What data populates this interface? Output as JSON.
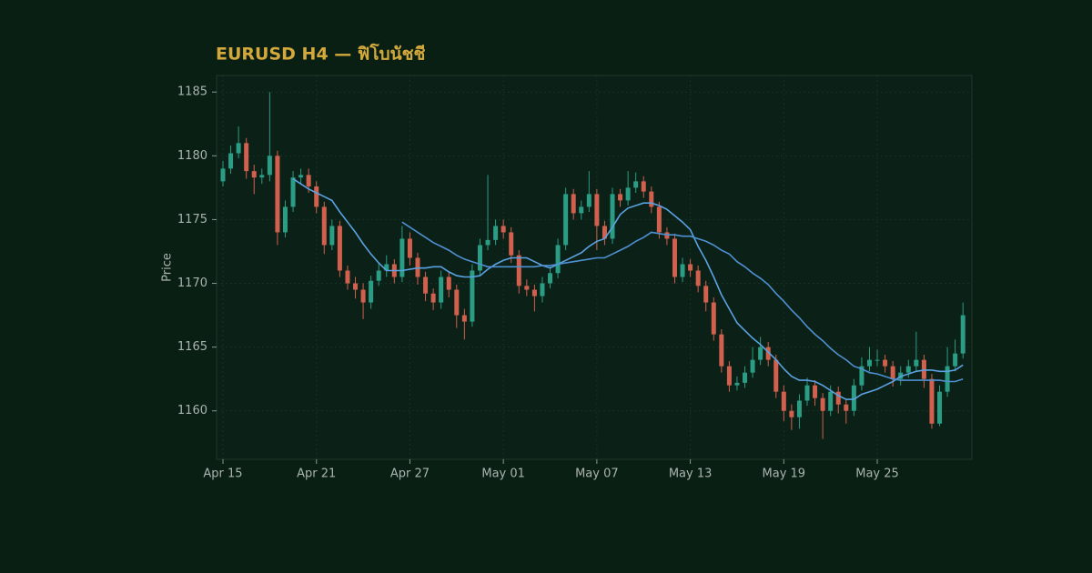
{
  "chart_data": {
    "type": "candlestick",
    "title": "EURUSD H4 — ฟิโบนัชชี",
    "y_label": "Price",
    "up_color": "#2a9d84",
    "down_color": "#d2604e",
    "categories": [
      "Apr 15",
      null,
      null,
      null,
      null,
      null,
      null,
      null,
      null,
      null,
      null,
      null,
      "Apr 21",
      null,
      null,
      null,
      null,
      null,
      null,
      null,
      null,
      null,
      null,
      null,
      "Apr 27",
      null,
      null,
      null,
      null,
      null,
      null,
      null,
      null,
      null,
      null,
      null,
      "May 01",
      null,
      null,
      null,
      null,
      null,
      null,
      null,
      null,
      null,
      null,
      null,
      "May 07",
      null,
      null,
      null,
      null,
      null,
      null,
      null,
      null,
      null,
      null,
      null,
      "May 13",
      null,
      null,
      null,
      null,
      null,
      null,
      null,
      null,
      null,
      null,
      null,
      "May 19",
      null,
      null,
      null,
      null,
      null,
      null,
      null,
      null,
      null,
      null,
      null,
      "May 25",
      null,
      null,
      null,
      null,
      null,
      null,
      null,
      null,
      null,
      null,
      null
    ],
    "open": [
      1178.0,
      1179.0,
      1180.2,
      1181.0,
      1178.8,
      1178.3,
      1178.5,
      1180.0,
      1174.0,
      1176.0,
      1178.3,
      1178.5,
      1177.6,
      1176.0,
      1173.0,
      1174.5,
      1171.0,
      1170.0,
      1169.5,
      1168.5,
      1170.2,
      1171.0,
      1171.5,
      1170.5,
      1173.5,
      1172.0,
      1170.5,
      1169.2,
      1168.5,
      1170.5,
      1169.5,
      1167.5,
      1167.0,
      1171.0,
      1173.0,
      1173.4,
      1174.5,
      1174.0,
      1172.2,
      1169.8,
      1169.5,
      1169.0,
      1170.0,
      1170.8,
      1173.0,
      1177.0,
      1175.5,
      1176.0,
      1177.0,
      1174.5,
      1173.5,
      1177.0,
      1176.5,
      1177.5,
      1178.0,
      1177.2,
      1176.0,
      1174.0,
      1173.5,
      1170.5,
      1171.5,
      1171.0,
      1169.8,
      1168.5,
      1166.0,
      1163.5,
      1162.0,
      1162.2,
      1163.0,
      1164.0,
      1165.0,
      1164.0,
      1161.5,
      1160.0,
      1159.5,
      1160.8,
      1162.0,
      1161.0,
      1160.0,
      1161.5,
      1160.5,
      1160.0,
      1162.0,
      1163.5,
      1164.0,
      1164.0,
      1163.5,
      1162.5,
      1163.0,
      1163.5,
      1164.0,
      1162.5,
      1159.0,
      1161.5,
      1163.5,
      1164.5
    ],
    "high": [
      1179.6,
      1180.8,
      1182.3,
      1181.4,
      1179.3,
      1179.0,
      1185.0,
      1180.4,
      1176.5,
      1178.8,
      1179.0,
      1179.0,
      1178.0,
      1176.4,
      1175.0,
      1174.9,
      1171.4,
      1170.5,
      1170.0,
      1170.6,
      1171.6,
      1172.2,
      1171.9,
      1174.5,
      1174.0,
      1172.4,
      1170.9,
      1169.6,
      1171.0,
      1170.9,
      1169.9,
      1168.0,
      1171.5,
      1173.5,
      1178.5,
      1175.0,
      1175.0,
      1174.4,
      1172.6,
      1170.3,
      1169.9,
      1170.5,
      1171.3,
      1173.5,
      1177.5,
      1177.4,
      1176.5,
      1178.8,
      1177.4,
      1174.9,
      1177.5,
      1177.4,
      1178.8,
      1178.7,
      1178.4,
      1177.6,
      1176.4,
      1174.4,
      1173.9,
      1172.0,
      1171.9,
      1171.4,
      1170.2,
      1168.9,
      1166.4,
      1163.9,
      1162.7,
      1163.5,
      1165.0,
      1165.8,
      1165.4,
      1164.4,
      1162.0,
      1160.5,
      1161.3,
      1162.6,
      1162.4,
      1161.4,
      1162.0,
      1161.9,
      1160.9,
      1162.5,
      1164.2,
      1165.0,
      1164.8,
      1164.4,
      1163.9,
      1163.5,
      1164.0,
      1166.2,
      1164.4,
      1162.9,
      1162.0,
      1165.0,
      1165.6,
      1168.5
    ],
    "low": [
      1177.6,
      1178.6,
      1179.8,
      1178.2,
      1177.0,
      1177.8,
      1178.0,
      1173.0,
      1173.6,
      1175.6,
      1177.8,
      1177.1,
      1175.5,
      1172.3,
      1172.6,
      1170.5,
      1169.5,
      1168.8,
      1167.2,
      1168.0,
      1169.8,
      1170.5,
      1170.0,
      1170.1,
      1171.4,
      1169.9,
      1168.6,
      1167.9,
      1168.0,
      1168.9,
      1166.5,
      1165.6,
      1166.6,
      1170.6,
      1172.6,
      1173.0,
      1173.5,
      1171.6,
      1169.2,
      1169.0,
      1167.8,
      1168.5,
      1169.6,
      1170.4,
      1172.6,
      1175.0,
      1175.0,
      1175.6,
      1172.6,
      1173.0,
      1173.1,
      1176.0,
      1176.1,
      1177.1,
      1176.7,
      1175.5,
      1173.5,
      1173.0,
      1170.0,
      1170.1,
      1170.5,
      1169.3,
      1167.8,
      1165.5,
      1163.0,
      1161.5,
      1161.6,
      1161.8,
      1162.6,
      1163.6,
      1163.5,
      1161.0,
      1159.2,
      1158.5,
      1158.6,
      1160.4,
      1160.4,
      1157.8,
      1159.6,
      1159.8,
      1159.0,
      1159.6,
      1161.6,
      1163.1,
      1163.5,
      1163.0,
      1161.9,
      1162.0,
      1162.6,
      1163.1,
      1161.8,
      1158.6,
      1158.8,
      1161.1,
      1163.1,
      1164.1
    ],
    "close": [
      1179.0,
      1180.2,
      1181.0,
      1178.8,
      1178.3,
      1178.5,
      1180.0,
      1174.0,
      1176.0,
      1178.3,
      1178.5,
      1177.6,
      1176.0,
      1173.0,
      1174.5,
      1171.0,
      1170.0,
      1169.5,
      1168.5,
      1170.2,
      1171.0,
      1171.5,
      1170.5,
      1173.5,
      1172.0,
      1170.5,
      1169.2,
      1168.5,
      1170.5,
      1169.5,
      1167.5,
      1167.0,
      1171.0,
      1173.0,
      1173.4,
      1174.5,
      1174.0,
      1172.2,
      1169.8,
      1169.5,
      1169.0,
      1170.0,
      1170.8,
      1173.0,
      1177.0,
      1175.5,
      1176.0,
      1177.0,
      1174.5,
      1173.5,
      1177.0,
      1176.5,
      1177.5,
      1178.0,
      1177.2,
      1176.0,
      1174.0,
      1173.5,
      1170.5,
      1171.5,
      1171.0,
      1169.8,
      1168.5,
      1166.0,
      1163.5,
      1162.0,
      1162.2,
      1163.0,
      1164.0,
      1165.0,
      1164.0,
      1161.5,
      1160.0,
      1159.5,
      1160.8,
      1162.0,
      1161.0,
      1160.0,
      1161.5,
      1160.5,
      1160.0,
      1162.0,
      1163.5,
      1164.0,
      1164.0,
      1163.5,
      1162.5,
      1163.0,
      1163.5,
      1164.0,
      1162.5,
      1159.0,
      1161.5,
      1163.5,
      1164.5,
      1167.5
    ],
    "series": [
      {
        "color": "#5aa2e2",
        "values": [
          null,
          null,
          null,
          null,
          null,
          null,
          null,
          null,
          null,
          1178.2,
          1177.8,
          1177.4,
          1177.1,
          1176.8,
          1176.5,
          1175.6,
          1174.8,
          1174.0,
          1173.1,
          1172.3,
          1171.6,
          1171.0,
          1171.0,
          1171.0,
          1171.1,
          1171.2,
          1171.2,
          1171.3,
          1171.3,
          1170.9,
          1170.6,
          1170.5,
          1170.5,
          1170.6,
          1171.1,
          1171.5,
          1171.8,
          1172.0,
          1172.0,
          1172.0,
          1171.7,
          1171.4,
          1171.2,
          1171.5,
          1171.8,
          1172.1,
          1172.4,
          1172.9,
          1173.3,
          1173.5,
          1174.4,
          1175.4,
          1175.9,
          1176.1,
          1176.3,
          1176.3,
          1176.1,
          1175.8,
          1175.3,
          1174.8,
          1174.2,
          1172.9,
          1171.8,
          1170.5,
          1169.1,
          1168.0,
          1166.9,
          1166.3,
          1165.7,
          1165.2,
          1164.6,
          1164.0,
          1163.3,
          1162.7,
          1162.4,
          1162.4,
          1162.3,
          1162.0,
          1161.6,
          1161.2,
          1160.9,
          1160.9,
          1161.3,
          1161.5,
          1161.7,
          1162.0,
          1162.3,
          1162.7,
          1162.9,
          1163.1,
          1163.2,
          1163.2,
          1163.1,
          1163.1,
          1163.2,
          1163.6
        ]
      },
      {
        "color": "#4e90d2",
        "values": [
          null,
          null,
          null,
          null,
          null,
          null,
          null,
          null,
          null,
          null,
          null,
          null,
          null,
          null,
          null,
          null,
          null,
          null,
          null,
          null,
          null,
          null,
          null,
          1174.8,
          1174.4,
          1174.0,
          1173.6,
          1173.2,
          1172.9,
          1172.6,
          1172.2,
          1171.9,
          1171.7,
          1171.5,
          1171.3,
          1171.3,
          1171.3,
          1171.3,
          1171.3,
          1171.3,
          1171.3,
          1171.4,
          1171.4,
          1171.5,
          1171.6,
          1171.7,
          1171.8,
          1171.9,
          1172.0,
          1172.0,
          1172.3,
          1172.6,
          1172.9,
          1173.3,
          1173.6,
          1174.0,
          1173.9,
          1173.8,
          1173.8,
          1173.7,
          1173.7,
          1173.5,
          1173.3,
          1173.0,
          1172.6,
          1172.3,
          1171.7,
          1171.3,
          1170.8,
          1170.4,
          1169.9,
          1169.2,
          1168.6,
          1167.9,
          1167.3,
          1166.6,
          1166.0,
          1165.5,
          1164.9,
          1164.4,
          1164.0,
          1163.5,
          1163.3,
          1163.0,
          1162.9,
          1162.7,
          1162.5,
          1162.4,
          1162.4,
          1162.4,
          1162.4,
          1162.4,
          1162.4,
          1162.3,
          1162.3,
          1162.5
        ]
      }
    ],
    "ylim": [
      1156.2,
      1186.3
    ],
    "yticks": [
      1160,
      1165,
      1170,
      1175,
      1180,
      1185
    ],
    "grid": true
  }
}
